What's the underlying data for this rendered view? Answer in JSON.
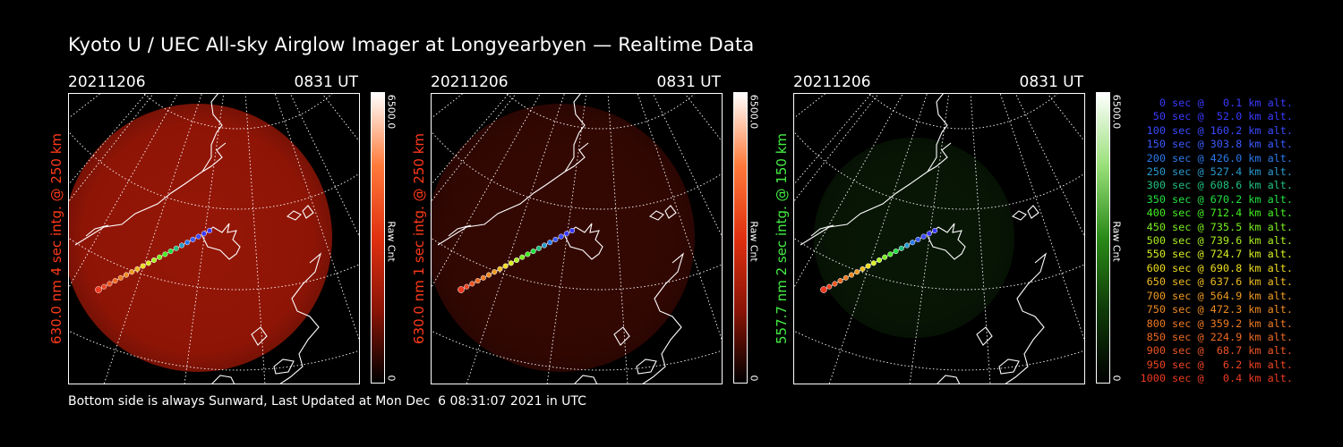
{
  "title": "Kyoto U / UEC All-sky Airglow Imager at Longyearbyen — Realtime Data",
  "footer": "Bottom side is always Sunward, Last Updated at Mon Dec  6 08:31:07 2021 in UTC",
  "colors": {
    "red_glow": "#b01a08",
    "green_glow": "#1a4a12",
    "trajectory_start": "#ff5a1a",
    "trajectory_end": "#2a2aff"
  },
  "chart_data": [
    {
      "type": "heatmap",
      "date": "20211206",
      "time": "0831 UT",
      "ylabel": "630.0 nm  4 sec intg. @ 250 km",
      "label_color": "#ff3a1a",
      "colorbar": {
        "max": "6500.0",
        "min": "0",
        "label": "Raw Cnt",
        "colors": [
          "#000000",
          "#8a1406",
          "#e03010",
          "#ff7a3a",
          "#ffffff"
        ]
      },
      "glow_intensity": 0.85
    },
    {
      "type": "heatmap",
      "date": "20211206",
      "time": "0831 UT",
      "ylabel": "630.0 nm  1 sec intg. @ 250 km",
      "label_color": "#ff3a1a",
      "colorbar": {
        "max": "6500.0",
        "min": "0",
        "label": "Raw Cnt",
        "colors": [
          "#000000",
          "#8a1406",
          "#e03010",
          "#ff7a3a",
          "#ffffff"
        ]
      },
      "glow_intensity": 0.3
    },
    {
      "type": "heatmap",
      "date": "20211206",
      "time": "0831 UT",
      "ylabel": "557.7 nm  2 sec intg. @ 150 km",
      "label_color": "#44ee44",
      "colorbar": {
        "max": "6500.0",
        "min": "0",
        "label": "Raw Cnt",
        "colors": [
          "#000000",
          "#0f3a08",
          "#2a8a18",
          "#9ae07a",
          "#ffffff"
        ]
      },
      "glow_intensity": 0.3
    },
    {
      "type": "table",
      "title": "",
      "columns": [
        "time_sec",
        "altitude_km"
      ],
      "rows": [
        {
          "sec": 0,
          "alt": 0.1,
          "text": "   0 sec @   0.1 km alt.",
          "color": "#3a3aff"
        },
        {
          "sec": 50,
          "alt": 52.0,
          "text": "  50 sec @  52.0 km alt.",
          "color": "#3a3aff"
        },
        {
          "sec": 100,
          "alt": 160.2,
          "text": " 100 sec @ 160.2 km alt.",
          "color": "#3a4aff"
        },
        {
          "sec": 150,
          "alt": 303.8,
          "text": " 150 sec @ 303.8 km alt.",
          "color": "#3a5aff"
        },
        {
          "sec": 200,
          "alt": 426.0,
          "text": " 200 sec @ 426.0 km alt.",
          "color": "#2a7aee"
        },
        {
          "sec": 250,
          "alt": 527.4,
          "text": " 250 sec @ 527.4 km alt.",
          "color": "#2a9acc"
        },
        {
          "sec": 300,
          "alt": 608.6,
          "text": " 300 sec @ 608.6 km alt.",
          "color": "#22c080"
        },
        {
          "sec": 350,
          "alt": 670.2,
          "text": " 350 sec @ 670.2 km alt.",
          "color": "#22e040"
        },
        {
          "sec": 400,
          "alt": 712.4,
          "text": " 400 sec @ 712.4 km alt.",
          "color": "#44ee22"
        },
        {
          "sec": 450,
          "alt": 735.5,
          "text": " 450 sec @ 735.5 km alt.",
          "color": "#7aee22"
        },
        {
          "sec": 500,
          "alt": 739.6,
          "text": " 500 sec @ 739.6 km alt.",
          "color": "#aaee22"
        },
        {
          "sec": 550,
          "alt": 724.7,
          "text": " 550 sec @ 724.7 km alt.",
          "color": "#d8ee22"
        },
        {
          "sec": 600,
          "alt": 690.8,
          "text": " 600 sec @ 690.8 km alt.",
          "color": "#eedd22"
        },
        {
          "sec": 650,
          "alt": 637.6,
          "text": " 650 sec @ 637.6 km alt.",
          "color": "#eebb22"
        },
        {
          "sec": 700,
          "alt": 564.9,
          "text": " 700 sec @ 564.9 km alt.",
          "color": "#ee9a22"
        },
        {
          "sec": 750,
          "alt": 472.3,
          "text": " 750 sec @ 472.3 km alt.",
          "color": "#ee8a22"
        },
        {
          "sec": 800,
          "alt": 359.2,
          "text": " 800 sec @ 359.2 km alt.",
          "color": "#ee7a22"
        },
        {
          "sec": 850,
          "alt": 224.9,
          "text": " 850 sec @ 224.9 km alt.",
          "color": "#ee6a22"
        },
        {
          "sec": 900,
          "alt": 68.7,
          "text": " 900 sec @  68.7 km alt.",
          "color": "#ee5522"
        },
        {
          "sec": 950,
          "alt": 6.2,
          "text": " 950 sec @   6.2 km alt.",
          "color": "#ee4422"
        },
        {
          "sec": 1000,
          "alt": 0.4,
          "text": "1000 sec @   0.4 km alt.",
          "color": "#ee3a22"
        }
      ]
    }
  ]
}
